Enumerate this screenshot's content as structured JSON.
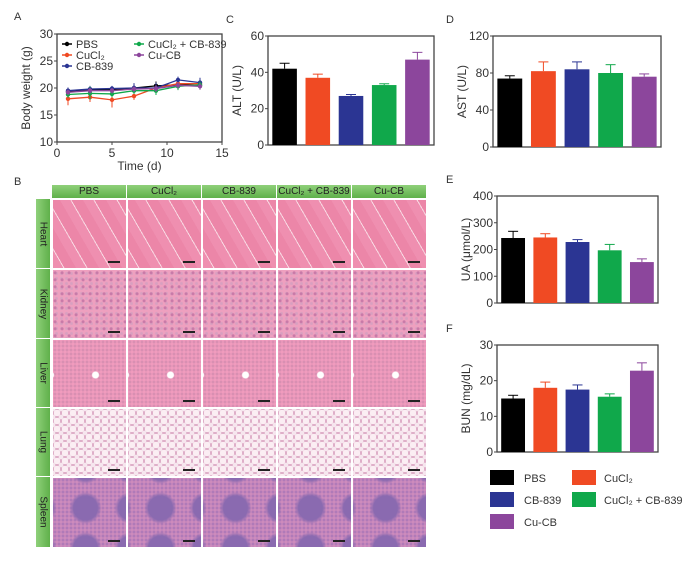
{
  "panels": {
    "A": "A",
    "B": "B",
    "C": "C",
    "D": "D",
    "E": "E",
    "F": "F"
  },
  "colors": {
    "PBS": "#000000",
    "CuCl2": "#f04a23",
    "CB-839": "#2b3593",
    "CuCl2 + CB-839": "#10a84b",
    "Cu-CB": "#8c469c"
  },
  "histology": {
    "columns": [
      "PBS",
      "CuCl₂",
      "CB-839",
      "CuCl₂ + CB-839",
      "Cu-CB"
    ],
    "rows": [
      "Heart",
      "Kidney",
      "Liver",
      "Lung",
      "Spleen"
    ]
  },
  "legend": [
    "PBS",
    "CuCl₂",
    "CB-839",
    "CuCl₂ + CB-839",
    "Cu-CB"
  ],
  "chart_data": [
    {
      "panel": "A",
      "type": "line",
      "xlabel": "Time (d)",
      "ylabel": "Body weight (g)",
      "xlim": [
        0,
        15
      ],
      "ylim": [
        10,
        30
      ],
      "xticks": [
        0,
        5,
        10,
        15
      ],
      "yticks": [
        10,
        15,
        20,
        25,
        30
      ],
      "x": [
        1,
        3,
        5,
        7,
        9,
        11,
        13
      ],
      "legend_placement": "top-left",
      "series": [
        {
          "name": "PBS",
          "values": [
            19.3,
            19.6,
            19.7,
            20.0,
            20.4,
            20.6,
            20.5
          ],
          "err": [
            0.6,
            0.6,
            0.6,
            0.7,
            0.8,
            0.9,
            0.8
          ]
        },
        {
          "name": "CuCl₂",
          "values": [
            18.0,
            18.3,
            17.8,
            18.5,
            20.0,
            20.8,
            20.8
          ],
          "err": [
            1.2,
            0.9,
            1.4,
            0.7,
            0.6,
            0.6,
            0.6
          ]
        },
        {
          "name": "CB-839",
          "values": [
            19.5,
            19.8,
            19.9,
            20.0,
            20.0,
            21.5,
            21.0
          ],
          "err": [
            0.6,
            0.6,
            0.5,
            0.9,
            1.0,
            0.6,
            0.9
          ]
        },
        {
          "name": "CuCl₂ + CB-839",
          "values": [
            18.8,
            19.0,
            18.9,
            19.5,
            19.5,
            20.3,
            20.6
          ],
          "err": [
            0.6,
            1.2,
            0.6,
            0.6,
            0.8,
            0.7,
            0.6
          ]
        },
        {
          "name": "Cu-CB",
          "values": [
            19.2,
            19.5,
            19.5,
            19.8,
            19.9,
            20.5,
            20.3
          ],
          "err": [
            0.5,
            0.5,
            0.5,
            0.5,
            0.6,
            0.6,
            0.6
          ]
        }
      ]
    },
    {
      "panel": "C",
      "type": "bar",
      "ylabel": "ALT (U/L)",
      "ylim": [
        0,
        60
      ],
      "yticks": [
        0,
        20,
        40,
        60
      ],
      "categories": [
        "PBS",
        "CuCl₂",
        "CB-839",
        "CuCl₂ + CB-839",
        "Cu-CB"
      ],
      "values": [
        42,
        37,
        27,
        33,
        47
      ],
      "err": [
        3,
        2,
        0.8,
        0.7,
        4
      ]
    },
    {
      "panel": "D",
      "type": "bar",
      "ylabel": "AST (U/L)",
      "ylim": [
        0,
        120
      ],
      "yticks": [
        0,
        40,
        80,
        120
      ],
      "categories": [
        "PBS",
        "CuCl₂",
        "CB-839",
        "CuCl₂ + CB-839",
        "Cu-CB"
      ],
      "values": [
        74,
        82,
        84,
        80,
        76
      ],
      "err": [
        3,
        10,
        8,
        9,
        3
      ]
    },
    {
      "panel": "E",
      "type": "bar",
      "ylabel": "UA (μmol/L)",
      "ylim": [
        0,
        400
      ],
      "yticks": [
        0,
        100,
        200,
        300,
        400
      ],
      "categories": [
        "PBS",
        "CuCl₂",
        "CB-839",
        "CuCl₂ + CB-839",
        "Cu-CB"
      ],
      "values": [
        243,
        245,
        228,
        197,
        153
      ],
      "err": [
        25,
        14,
        9,
        22,
        12
      ]
    },
    {
      "panel": "F",
      "type": "bar",
      "ylabel": "BUN (mg/dL)",
      "ylim": [
        0,
        30
      ],
      "yticks": [
        0,
        10,
        20,
        30
      ],
      "categories": [
        "PBS",
        "CuCl₂",
        "CB-839",
        "CuCl₂ + CB-839",
        "Cu-CB"
      ],
      "values": [
        15,
        18,
        17.5,
        15.5,
        22.8
      ],
      "err": [
        0.9,
        1.6,
        1.3,
        0.8,
        2.2
      ]
    }
  ]
}
